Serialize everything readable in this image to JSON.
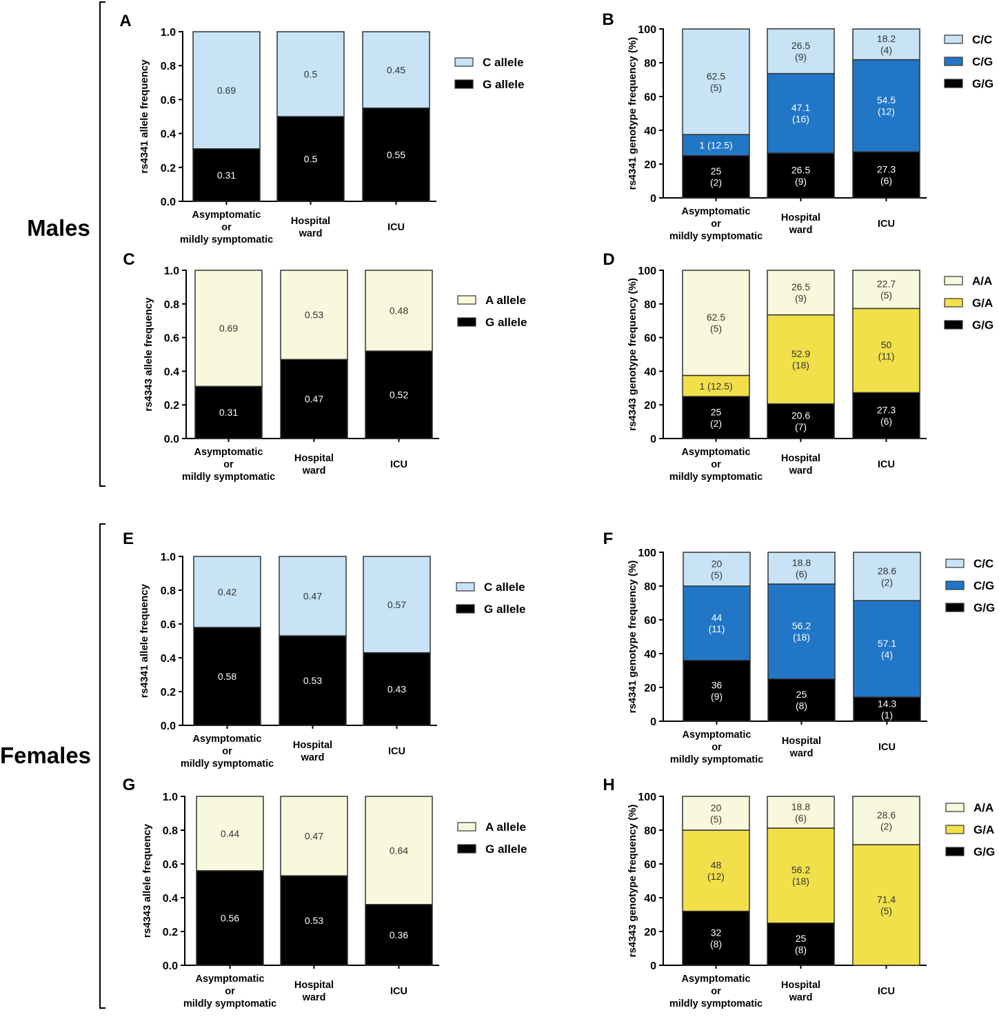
{
  "groups": [
    {
      "label": "Males",
      "panels": [
        "A",
        "B",
        "C",
        "D"
      ]
    },
    {
      "label": "Females",
      "panels": [
        "E",
        "F",
        "G",
        "H"
      ]
    }
  ],
  "categories": [
    "Asymptomatic\nor\nmildly symptomatic",
    "Hospital\nward",
    "ICU"
  ],
  "colors": {
    "light_blue": "#c7e3f5",
    "dark_blue": "#2176c6",
    "pale_yellow": "#f8f8dc",
    "yellow": "#f2e04a",
    "black": "#000000"
  },
  "chart_data": [
    {
      "panel": "A",
      "type": "bar",
      "stacked": true,
      "ylabel": "rs4341 allele frequency",
      "ylim": [
        0,
        1.0
      ],
      "yticks": [
        "0.0",
        "0.2",
        "0.4",
        "0.6",
        "0.8",
        "1.0"
      ],
      "categories": [
        "Asymptomatic\nor\nmildly symptomatic",
        "Hospital\nward",
        "ICU"
      ],
      "series": [
        {
          "name": "G allele",
          "values": [
            0.31,
            0.5,
            0.55
          ],
          "labels": [
            "0.31",
            "0.5",
            "0.55"
          ]
        },
        {
          "name": "C allele",
          "values": [
            0.69,
            0.5,
            0.45
          ],
          "labels": [
            "0.69",
            "0.5",
            "0.45"
          ]
        }
      ],
      "legend": [
        "C allele",
        "G allele"
      ]
    },
    {
      "panel": "B",
      "type": "bar",
      "stacked": true,
      "ylabel": "rs4341 genotype frequency (%)",
      "ylim": [
        0,
        100
      ],
      "yticks": [
        "0",
        "20",
        "40",
        "60",
        "80",
        "100"
      ],
      "categories": [
        "Asymptomatic\nor\nmildly symptomatic",
        "Hospital\nward",
        "ICU"
      ],
      "series": [
        {
          "name": "G/G",
          "values": [
            25,
            26.5,
            27.3
          ],
          "labels": [
            "25\n(2)",
            "26.5\n(9)",
            "27.3\n(6)"
          ]
        },
        {
          "name": "C/G",
          "values": [
            12.5,
            47.1,
            54.5
          ],
          "labels": [
            "1 (12.5)",
            "47.1\n(16)",
            "54.5\n(12)"
          ]
        },
        {
          "name": "C/C",
          "values": [
            62.5,
            26.5,
            18.2
          ],
          "labels": [
            "62.5\n(5)",
            "26.5\n(9)",
            "18.2\n(4)"
          ]
        }
      ],
      "legend": [
        "C/C",
        "C/G",
        "G/G"
      ]
    },
    {
      "panel": "C",
      "type": "bar",
      "stacked": true,
      "ylabel": "rs4343 allele frequency",
      "ylim": [
        0,
        1.0
      ],
      "yticks": [
        "0.0",
        "0.2",
        "0.4",
        "0.6",
        "0.8",
        "1.0"
      ],
      "categories": [
        "Asymptomatic\nor\nmildly symptomatic",
        "Hospital\nward",
        "ICU"
      ],
      "series": [
        {
          "name": "G allele",
          "values": [
            0.31,
            0.47,
            0.52
          ],
          "labels": [
            "0.31",
            "0.47",
            "0.52"
          ]
        },
        {
          "name": "A allele",
          "values": [
            0.69,
            0.53,
            0.48
          ],
          "labels": [
            "0.69",
            "0.53",
            "0.48"
          ]
        }
      ],
      "legend": [
        "A allele",
        "G allele"
      ]
    },
    {
      "panel": "D",
      "type": "bar",
      "stacked": true,
      "ylabel": "rs4343 genotype frequency (%)",
      "ylim": [
        0,
        100
      ],
      "yticks": [
        "0",
        "20",
        "40",
        "60",
        "80",
        "100"
      ],
      "categories": [
        "Asymptomatic\nor\nmildly symptomatic",
        "Hospital\nward",
        "ICU"
      ],
      "series": [
        {
          "name": "G/G",
          "values": [
            25,
            20.6,
            27.3
          ],
          "labels": [
            "25\n(2)",
            "20.6\n(7)",
            "27.3\n(6)"
          ]
        },
        {
          "name": "G/A",
          "values": [
            12.5,
            52.9,
            50
          ],
          "labels": [
            "1 (12.5)",
            "52.9\n(18)",
            "50\n(11)"
          ]
        },
        {
          "name": "A/A",
          "values": [
            62.5,
            26.5,
            22.7
          ],
          "labels": [
            "62.5\n(5)",
            "26.5\n(9)",
            "22.7\n(5)"
          ]
        }
      ],
      "legend": [
        "A/A",
        "G/A",
        "G/G"
      ]
    },
    {
      "panel": "E",
      "type": "bar",
      "stacked": true,
      "ylabel": "rs4341 allele frequency",
      "ylim": [
        0,
        1.0
      ],
      "yticks": [
        "0.0",
        "0.2",
        "0.4",
        "0.6",
        "0.8",
        "1.0"
      ],
      "categories": [
        "Asymptomatic\nor\nmildly symptomatic",
        "Hospital\nward",
        "ICU"
      ],
      "series": [
        {
          "name": "G allele",
          "values": [
            0.58,
            0.53,
            0.43
          ],
          "labels": [
            "0.58",
            "0.53",
            "0.43"
          ]
        },
        {
          "name": "C allele",
          "values": [
            0.42,
            0.47,
            0.57
          ],
          "labels": [
            "0.42",
            "0.47",
            "0.57"
          ]
        }
      ],
      "legend": [
        "C allele",
        "G allele"
      ]
    },
    {
      "panel": "F",
      "type": "bar",
      "stacked": true,
      "ylabel": "rs4341 genotype frequency (%)",
      "ylim": [
        0,
        100
      ],
      "yticks": [
        "0",
        "20",
        "40",
        "60",
        "80",
        "100"
      ],
      "categories": [
        "Asymptomatic\nor\nmildly symptomatic",
        "Hospital\nward",
        "ICU"
      ],
      "series": [
        {
          "name": "G/G",
          "values": [
            36,
            25,
            14.3
          ],
          "labels": [
            "36\n(9)",
            "25\n(8)",
            "14.3\n(1)"
          ]
        },
        {
          "name": "C/G",
          "values": [
            44,
            56.2,
            57.1
          ],
          "labels": [
            "44\n(11)",
            "56.2\n(18)",
            "57.1\n(4)"
          ]
        },
        {
          "name": "C/C",
          "values": [
            20,
            18.8,
            28.6
          ],
          "labels": [
            "20\n(5)",
            "18.8\n(6)",
            "28.6\n(2)"
          ]
        }
      ],
      "legend": [
        "C/C",
        "C/G",
        "G/G"
      ]
    },
    {
      "panel": "G",
      "type": "bar",
      "stacked": true,
      "ylabel": "rs4343 allele frequency",
      "ylim": [
        0,
        1.0
      ],
      "yticks": [
        "0.0",
        "0.2",
        "0.4",
        "0.6",
        "0.8",
        "1.0"
      ],
      "categories": [
        "Asymptomatic\nor\nmildly symptomatic",
        "Hospital\nward",
        "ICU"
      ],
      "series": [
        {
          "name": "G allele",
          "values": [
            0.56,
            0.53,
            0.36
          ],
          "labels": [
            "0.56",
            "0.53",
            "0.36"
          ]
        },
        {
          "name": "A allele",
          "values": [
            0.44,
            0.47,
            0.64
          ],
          "labels": [
            "0.44",
            "0.47",
            "0.64"
          ]
        }
      ],
      "legend": [
        "A allele",
        "G allele"
      ]
    },
    {
      "panel": "H",
      "type": "bar",
      "stacked": true,
      "ylabel": "rs4343 genotype frequency (%)",
      "ylim": [
        0,
        100
      ],
      "yticks": [
        "0",
        "20",
        "40",
        "60",
        "80",
        "100"
      ],
      "categories": [
        "Asymptomatic\nor\nmildly symptomatic",
        "Hospital\nward",
        "ICU"
      ],
      "series": [
        {
          "name": "G/G",
          "values": [
            32,
            25,
            0
          ],
          "labels": [
            "32\n(8)",
            "25\n(8)",
            ""
          ]
        },
        {
          "name": "G/A",
          "values": [
            48,
            56.2,
            71.4
          ],
          "labels": [
            "48\n(12)",
            "56.2\n(18)",
            "71.4\n(5)"
          ]
        },
        {
          "name": "A/A",
          "values": [
            20,
            18.8,
            28.6
          ],
          "labels": [
            "20\n(5)",
            "18.8\n(6)",
            "28.6\n(2)"
          ]
        }
      ],
      "legend": [
        "A/A",
        "G/A",
        "G/G"
      ]
    }
  ]
}
